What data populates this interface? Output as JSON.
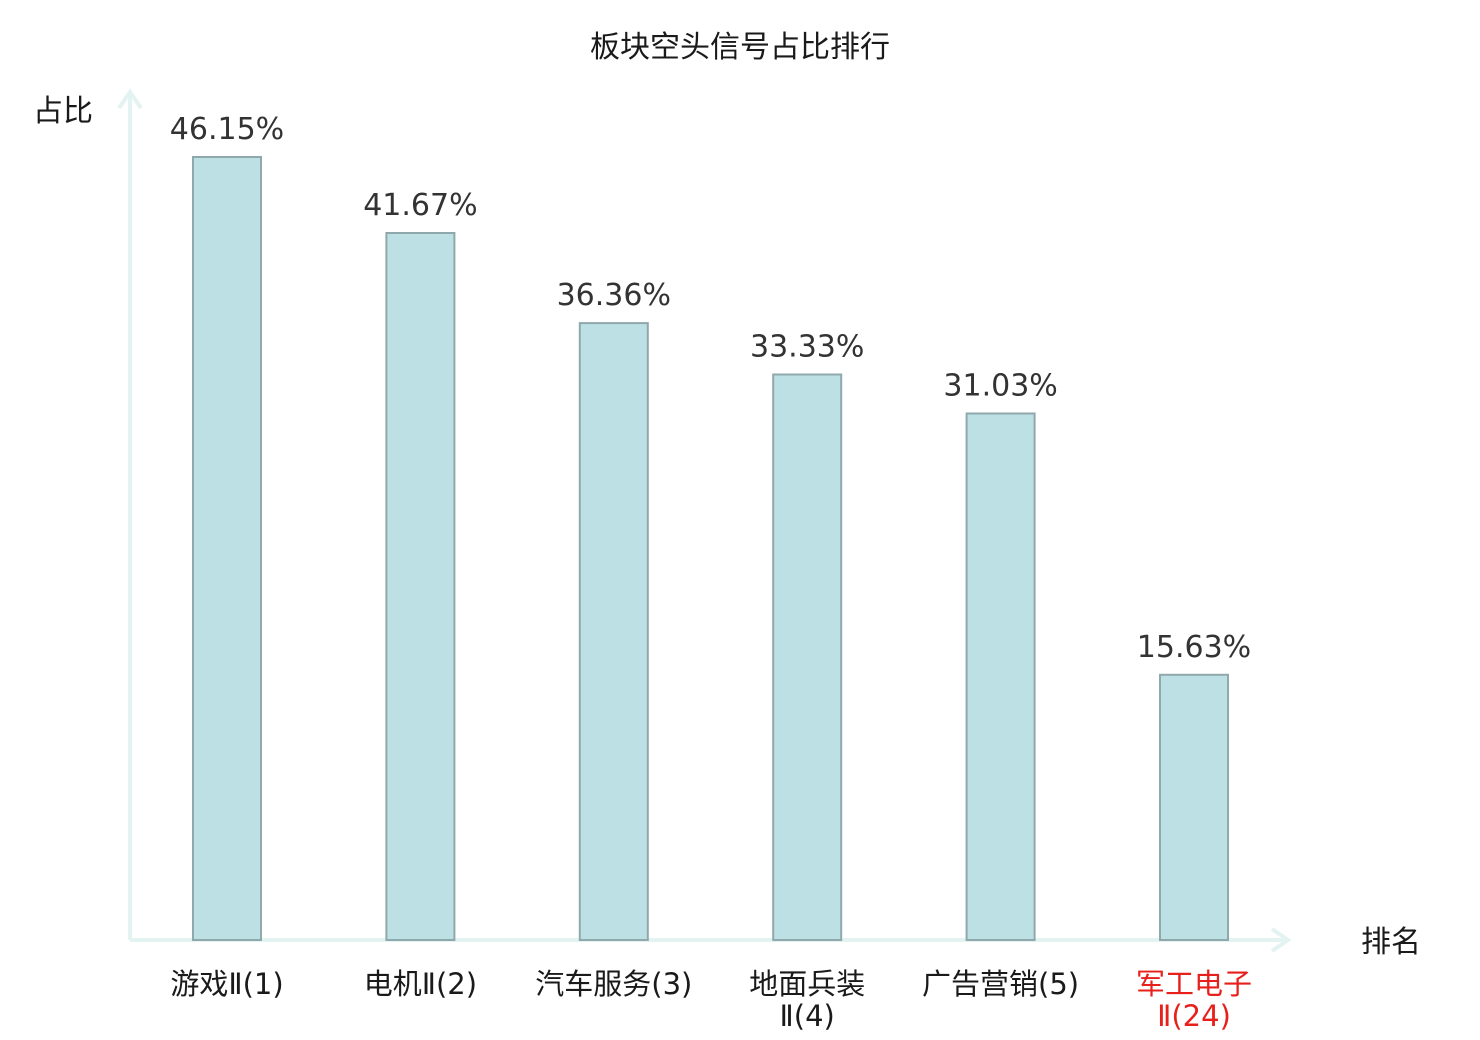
{
  "chart_data": {
    "type": "bar",
    "title": "板块空头信号占比排行",
    "ylabel": "占比",
    "xlabel": "排名",
    "categories": [
      [
        "游戏Ⅱ(1)"
      ],
      [
        "电机Ⅱ(2)"
      ],
      [
        "汽车服务(3)"
      ],
      [
        "地面兵装",
        "Ⅱ(4)"
      ],
      [
        "广告营销(5)"
      ],
      [
        "军工电子",
        "Ⅱ(24)"
      ]
    ],
    "values": [
      46.15,
      41.67,
      36.36,
      33.33,
      31.03,
      15.63
    ],
    "value_labels": [
      "46.15%",
      "41.67%",
      "36.36%",
      "33.33%",
      "31.03%",
      "15.63%"
    ],
    "highlight_index": 5,
    "ylim": [
      0,
      46.15
    ],
    "grid": false,
    "colors": {
      "bar_fill": "#bce0e3",
      "bar_stroke": "#8fa8ab",
      "axis": "#e2f3f1",
      "highlight_text": "#e8201c"
    }
  }
}
